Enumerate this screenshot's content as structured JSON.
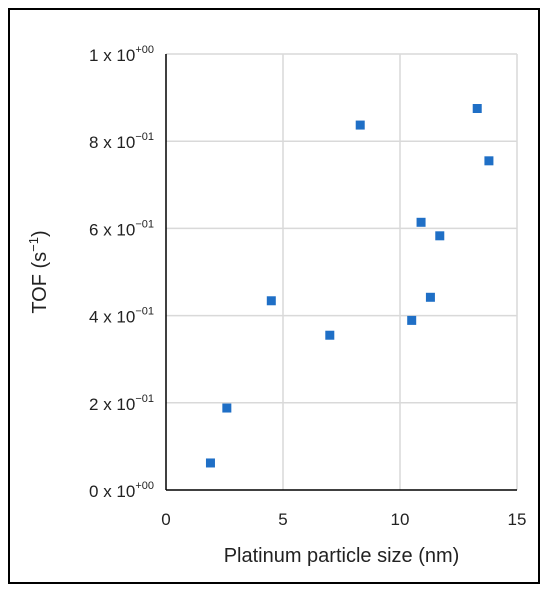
{
  "chart_data": {
    "type": "scatter",
    "xlabel": "Platinum particle size (nm)",
    "ylabel": {
      "base": "TOF (s",
      "sup": "−1",
      "tail": ")"
    },
    "xlim": [
      0,
      15
    ],
    "ylim": [
      0,
      1.0
    ],
    "x_ticks": [
      {
        "value": 0,
        "label": "0"
      },
      {
        "value": 5,
        "label": "5"
      },
      {
        "value": 10,
        "label": "10"
      },
      {
        "value": 15,
        "label": "15"
      }
    ],
    "y_ticks": [
      {
        "value": 0,
        "mantissa": "0 x 10",
        "exp": "+00"
      },
      {
        "value": 0.2,
        "mantissa": "2 x 10",
        "exp": "−01"
      },
      {
        "value": 0.4,
        "mantissa": "4 x 10",
        "exp": "−01"
      },
      {
        "value": 0.6,
        "mantissa": "6 x 10",
        "exp": "−01"
      },
      {
        "value": 0.8,
        "mantissa": "8 x 10",
        "exp": "−01"
      },
      {
        "value": 1.0,
        "mantissa": "1 x 10",
        "exp": "+00"
      }
    ],
    "grid": true,
    "marker_color": "#1f6fc6",
    "points": [
      {
        "x": 1.9,
        "y": 0.062
      },
      {
        "x": 2.6,
        "y": 0.188
      },
      {
        "x": 4.5,
        "y": 0.434
      },
      {
        "x": 7.0,
        "y": 0.355
      },
      {
        "x": 8.3,
        "y": 0.837
      },
      {
        "x": 10.5,
        "y": 0.389
      },
      {
        "x": 10.9,
        "y": 0.614
      },
      {
        "x": 11.3,
        "y": 0.442
      },
      {
        "x": 11.7,
        "y": 0.583
      },
      {
        "x": 13.3,
        "y": 0.875
      },
      {
        "x": 13.8,
        "y": 0.755
      }
    ]
  }
}
